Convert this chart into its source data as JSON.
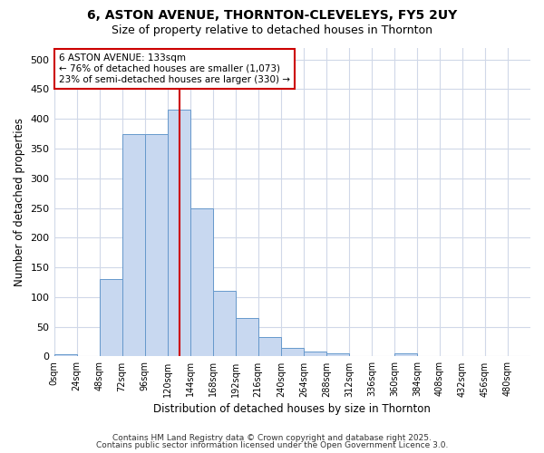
{
  "title1": "6, ASTON AVENUE, THORNTON-CLEVELEYS, FY5 2UY",
  "title2": "Size of property relative to detached houses in Thornton",
  "xlabel": "Distribution of detached houses by size in Thornton",
  "ylabel": "Number of detached properties",
  "bin_edges": [
    0,
    24,
    48,
    72,
    96,
    120,
    144,
    168,
    192,
    216,
    240,
    264,
    288,
    312,
    336,
    360,
    384,
    408,
    432,
    456,
    480,
    504
  ],
  "counts": [
    4,
    0,
    130,
    375,
    375,
    415,
    250,
    110,
    65,
    33,
    15,
    8,
    5,
    1,
    0,
    5,
    0,
    0,
    0,
    0,
    0
  ],
  "bar_color": "#c8d8f0",
  "bar_edge_color": "#6699cc",
  "vline_x": 133,
  "vline_color": "#cc0000",
  "annotation_title": "6 ASTON AVENUE: 133sqm",
  "annotation_line2": "← 76% of detached houses are smaller (1,073)",
  "annotation_line3": "23% of semi-detached houses are larger (330) →",
  "annotation_box_color": "#ffffff",
  "annotation_box_edge": "#cc0000",
  "ylim": [
    0,
    520
  ],
  "background_color": "#ffffff",
  "plot_bg_color": "#ffffff",
  "grid_color": "#d0d8e8",
  "footer1": "Contains HM Land Registry data © Crown copyright and database right 2025.",
  "footer2": "Contains public sector information licensed under the Open Government Licence 3.0.",
  "yticks": [
    0,
    50,
    100,
    150,
    200,
    250,
    300,
    350,
    400,
    450,
    500
  ],
  "tick_labels": [
    "0sqm",
    "24sqm",
    "48sqm",
    "72sqm",
    "96sqm",
    "120sqm",
    "144sqm",
    "168sqm",
    "192sqm",
    "216sqm",
    "240sqm",
    "264sqm",
    "288sqm",
    "312sqm",
    "336sqm",
    "360sqm",
    "384sqm",
    "408sqm",
    "432sqm",
    "456sqm",
    "480sqm"
  ]
}
